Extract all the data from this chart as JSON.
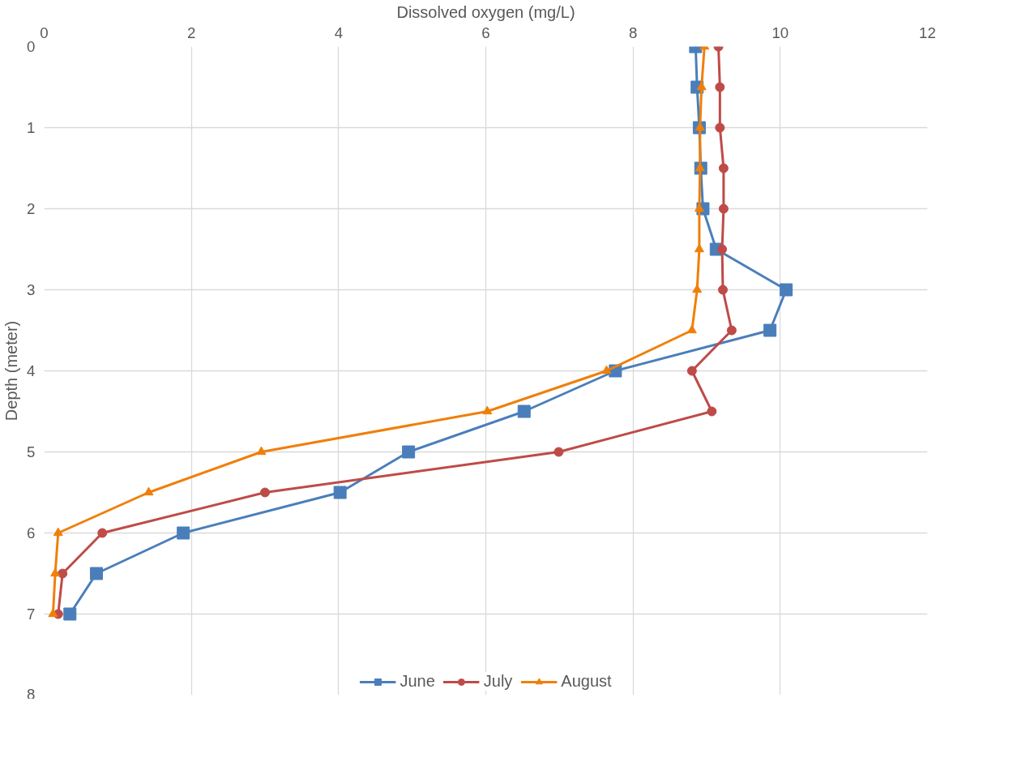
{
  "chart_data": {
    "type": "line",
    "xlabel": "Dissolved oxygen (mg/L)",
    "ylabel": "Depth (meter)",
    "xlim": [
      0,
      12
    ],
    "xticks": [
      0,
      2,
      4,
      6,
      8,
      10,
      12
    ],
    "ylim": [
      8,
      0
    ],
    "yticks": [
      0,
      1,
      2,
      3,
      4,
      5,
      6,
      7,
      8
    ],
    "grid": true,
    "legend": "bottom",
    "line_style": "solid",
    "series": [
      {
        "name": "June",
        "color": "#4a7ebb",
        "marker": "square",
        "x": [
          8.85,
          8.87,
          8.9,
          8.92,
          8.95,
          9.13,
          10.08,
          9.86,
          7.76,
          6.52,
          4.95,
          4.02,
          1.89,
          0.71,
          0.35
        ],
        "values": [
          0,
          0.5,
          1,
          1.5,
          2,
          2.5,
          3,
          3.5,
          4,
          4.5,
          5,
          5.5,
          6,
          6.5,
          7
        ]
      },
      {
        "name": "July",
        "color": "#be4b48",
        "marker": "circle",
        "x": [
          9.16,
          9.18,
          9.18,
          9.23,
          9.23,
          9.21,
          9.22,
          9.34,
          8.8,
          9.07,
          6.99,
          3.0,
          0.79,
          0.25,
          0.19
        ],
        "values": [
          0,
          0.5,
          1,
          1.5,
          2,
          2.5,
          3,
          3.5,
          4,
          4.5,
          5,
          5.5,
          6,
          6.5,
          7
        ]
      },
      {
        "name": "August",
        "color": "#f07f09",
        "marker": "triangle",
        "x": [
          8.97,
          8.93,
          8.91,
          8.91,
          8.9,
          8.9,
          8.87,
          8.8,
          7.64,
          6.02,
          2.95,
          1.42,
          0.19,
          0.15,
          0.12
        ],
        "values": [
          0,
          0.5,
          1,
          1.5,
          2,
          2.5,
          3,
          3.5,
          4,
          4.5,
          5,
          5.5,
          6,
          6.5,
          7
        ]
      }
    ]
  }
}
